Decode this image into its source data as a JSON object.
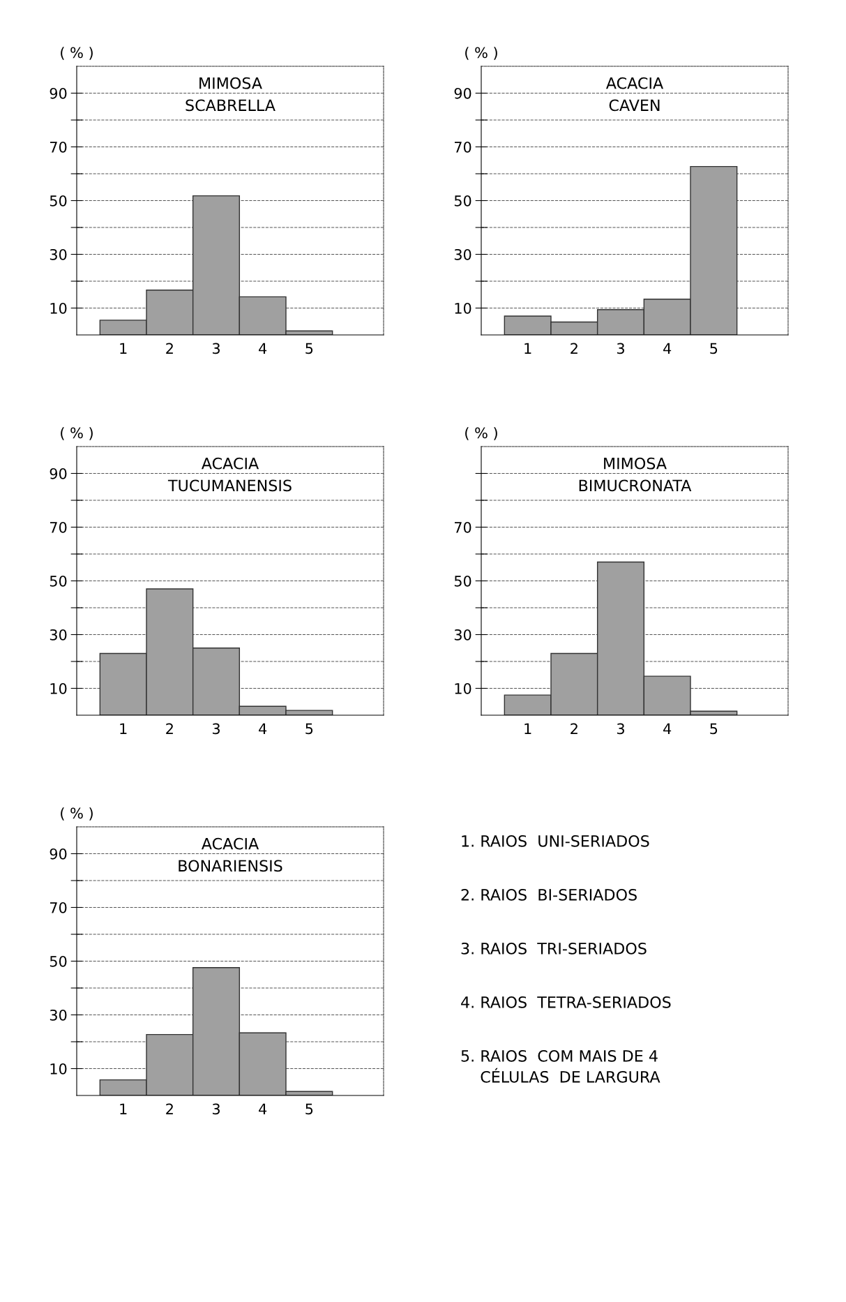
{
  "chart_data": [
    {
      "type": "bar",
      "title": "MIMOSA\nSCABRELLA",
      "ylabel": "( % )",
      "categories": [
        "1",
        "2",
        "3",
        "4",
        "5"
      ],
      "values": [
        5.5,
        16.7,
        51.8,
        14.2,
        1.5
      ],
      "color": "#a0a0a0",
      "ylim": [
        0,
        100
      ],
      "yticks": [
        10,
        {
          "value": 20,
          "label": null
        },
        30,
        {
          "value": 40,
          "label": null
        },
        50,
        {
          "value": 60,
          "label": null
        },
        70,
        {
          "value": 80,
          "label": null
        },
        90
      ],
      "grid": "y",
      "line_style": "dashed"
    },
    {
      "type": "bar",
      "title": "ACACIA\nCAVEN",
      "ylabel": "( % )",
      "categories": [
        "1",
        "2",
        "3",
        "4",
        "5"
      ],
      "values": [
        7,
        4.8,
        9.4,
        13.3,
        62.7
      ],
      "color": "#a0a0a0",
      "ylim": [
        0,
        100
      ],
      "yticks": [
        10,
        {
          "value": 20,
          "label": null
        },
        30,
        {
          "value": 40,
          "label": null
        },
        50,
        {
          "value": 60,
          "label": null
        },
        70,
        {
          "value": 80,
          "label": null
        },
        90
      ],
      "grid": "y",
      "line_style": "dashed"
    },
    {
      "type": "bar",
      "title": "ACACIA\nTUCUMANENSIS",
      "ylabel": "( % )",
      "categories": [
        "1",
        "2",
        "3",
        "4",
        "5"
      ],
      "values": [
        23,
        47,
        25,
        3.3,
        1.8
      ],
      "color": "#a0a0a0",
      "ylim": [
        0,
        100
      ],
      "yticks": [
        10,
        {
          "value": 20,
          "label": null
        },
        30,
        {
          "value": 40,
          "label": null
        },
        50,
        {
          "value": 60,
          "label": null
        },
        70,
        {
          "value": 80,
          "label": null
        },
        90
      ],
      "grid": "y",
      "line_style": "dashed"
    },
    {
      "type": "bar",
      "title": "MIMOSA\nBIMUCRONATA",
      "ylabel": "( % )",
      "categories": [
        "1",
        "2",
        "3",
        "4",
        "5"
      ],
      "values": [
        7.5,
        23,
        57,
        14.5,
        1.5
      ],
      "color": "#a0a0a0",
      "ylim": [
        0,
        100
      ],
      "yticks": [
        10,
        {
          "value": 20,
          "label": null
        },
        30,
        {
          "value": 40,
          "label": null
        },
        50,
        {
          "value": 60,
          "label": null
        },
        70,
        {
          "value": 80,
          "label": null
        },
        {
          "value": 90,
          "label": null
        }
      ],
      "grid": "y",
      "line_style": "dashed"
    },
    {
      "type": "bar",
      "title": "ACACIA\nBONARIENSIS",
      "ylabel": "( % )",
      "categories": [
        "1",
        "2",
        "3",
        "4",
        "5"
      ],
      "values": [
        5.8,
        22.7,
        47.6,
        23.3,
        1.5
      ],
      "color": "#a0a0a0",
      "ylim": [
        0,
        100
      ],
      "yticks": [
        10,
        {
          "value": 20,
          "label": null
        },
        30,
        {
          "value": 40,
          "label": null
        },
        50,
        {
          "value": 60,
          "label": null
        },
        70,
        {
          "value": 80,
          "label": null
        },
        90
      ],
      "grid": "y",
      "line_style": "dashed"
    },
    {
      "type": "other",
      "annotations": [
        "1. RAIOS  UNI-SERIADOS",
        "2. RAIOS  BI-SERIADOS",
        "3. RAIOS  TRI-SERIADOS",
        "4. RAIOS  TETRA-SERIADOS",
        "5. RAIOS  COM MAIS DE 4\n    CÉLULAS  DE LARGURA"
      ]
    }
  ]
}
